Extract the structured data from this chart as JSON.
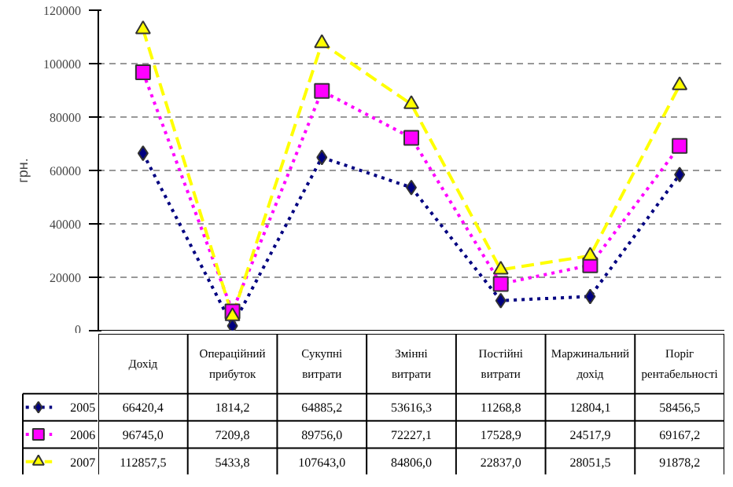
{
  "chart_data": {
    "type": "line",
    "ylabel": "грн.",
    "categories": [
      "Дохід",
      "Операційний прибуток",
      "Сукупні витрати",
      "Змінні витрати",
      "Постійні витрати",
      "Маржинальний дохід",
      "Поріг рентабельності"
    ],
    "series": [
      {
        "name": "2005",
        "color": "#000080",
        "marker": "diamond",
        "line_style": "dotted",
        "values": [
          66420.4,
          1814.2,
          64885.2,
          53616.3,
          11268.8,
          12804.1,
          58456.5
        ],
        "value_labels": [
          "66420,4",
          "1814,2",
          "64885,2",
          "53616,3",
          "11268,8",
          "12804,1",
          "58456,5"
        ]
      },
      {
        "name": "2006",
        "color": "#ff00ff",
        "marker": "square",
        "line_style": "dotted",
        "values": [
          96745.0,
          7209.8,
          89756.0,
          72227.1,
          17528.9,
          24517.9,
          69167.2
        ],
        "value_labels": [
          "96745,0",
          "7209,8",
          "89756,0",
          "72227,1",
          "17528,9",
          "24517,9",
          "69167,2"
        ]
      },
      {
        "name": "2007",
        "color": "#ffff00",
        "marker": "triangle",
        "line_style": "dashed",
        "values": [
          112857.5,
          5433.8,
          107643.0,
          84806.0,
          22837.0,
          28051.5,
          91878.2
        ],
        "value_labels": [
          "112857,5",
          "5433,8",
          "107643,0",
          "84806,0",
          "22837,0",
          "28051,5",
          "91878,2"
        ]
      }
    ],
    "ylim": [
      0,
      120000
    ],
    "yticks": [
      0,
      20000,
      40000,
      60000,
      80000,
      100000,
      120000
    ],
    "grid": "y",
    "legend": "bottom"
  }
}
